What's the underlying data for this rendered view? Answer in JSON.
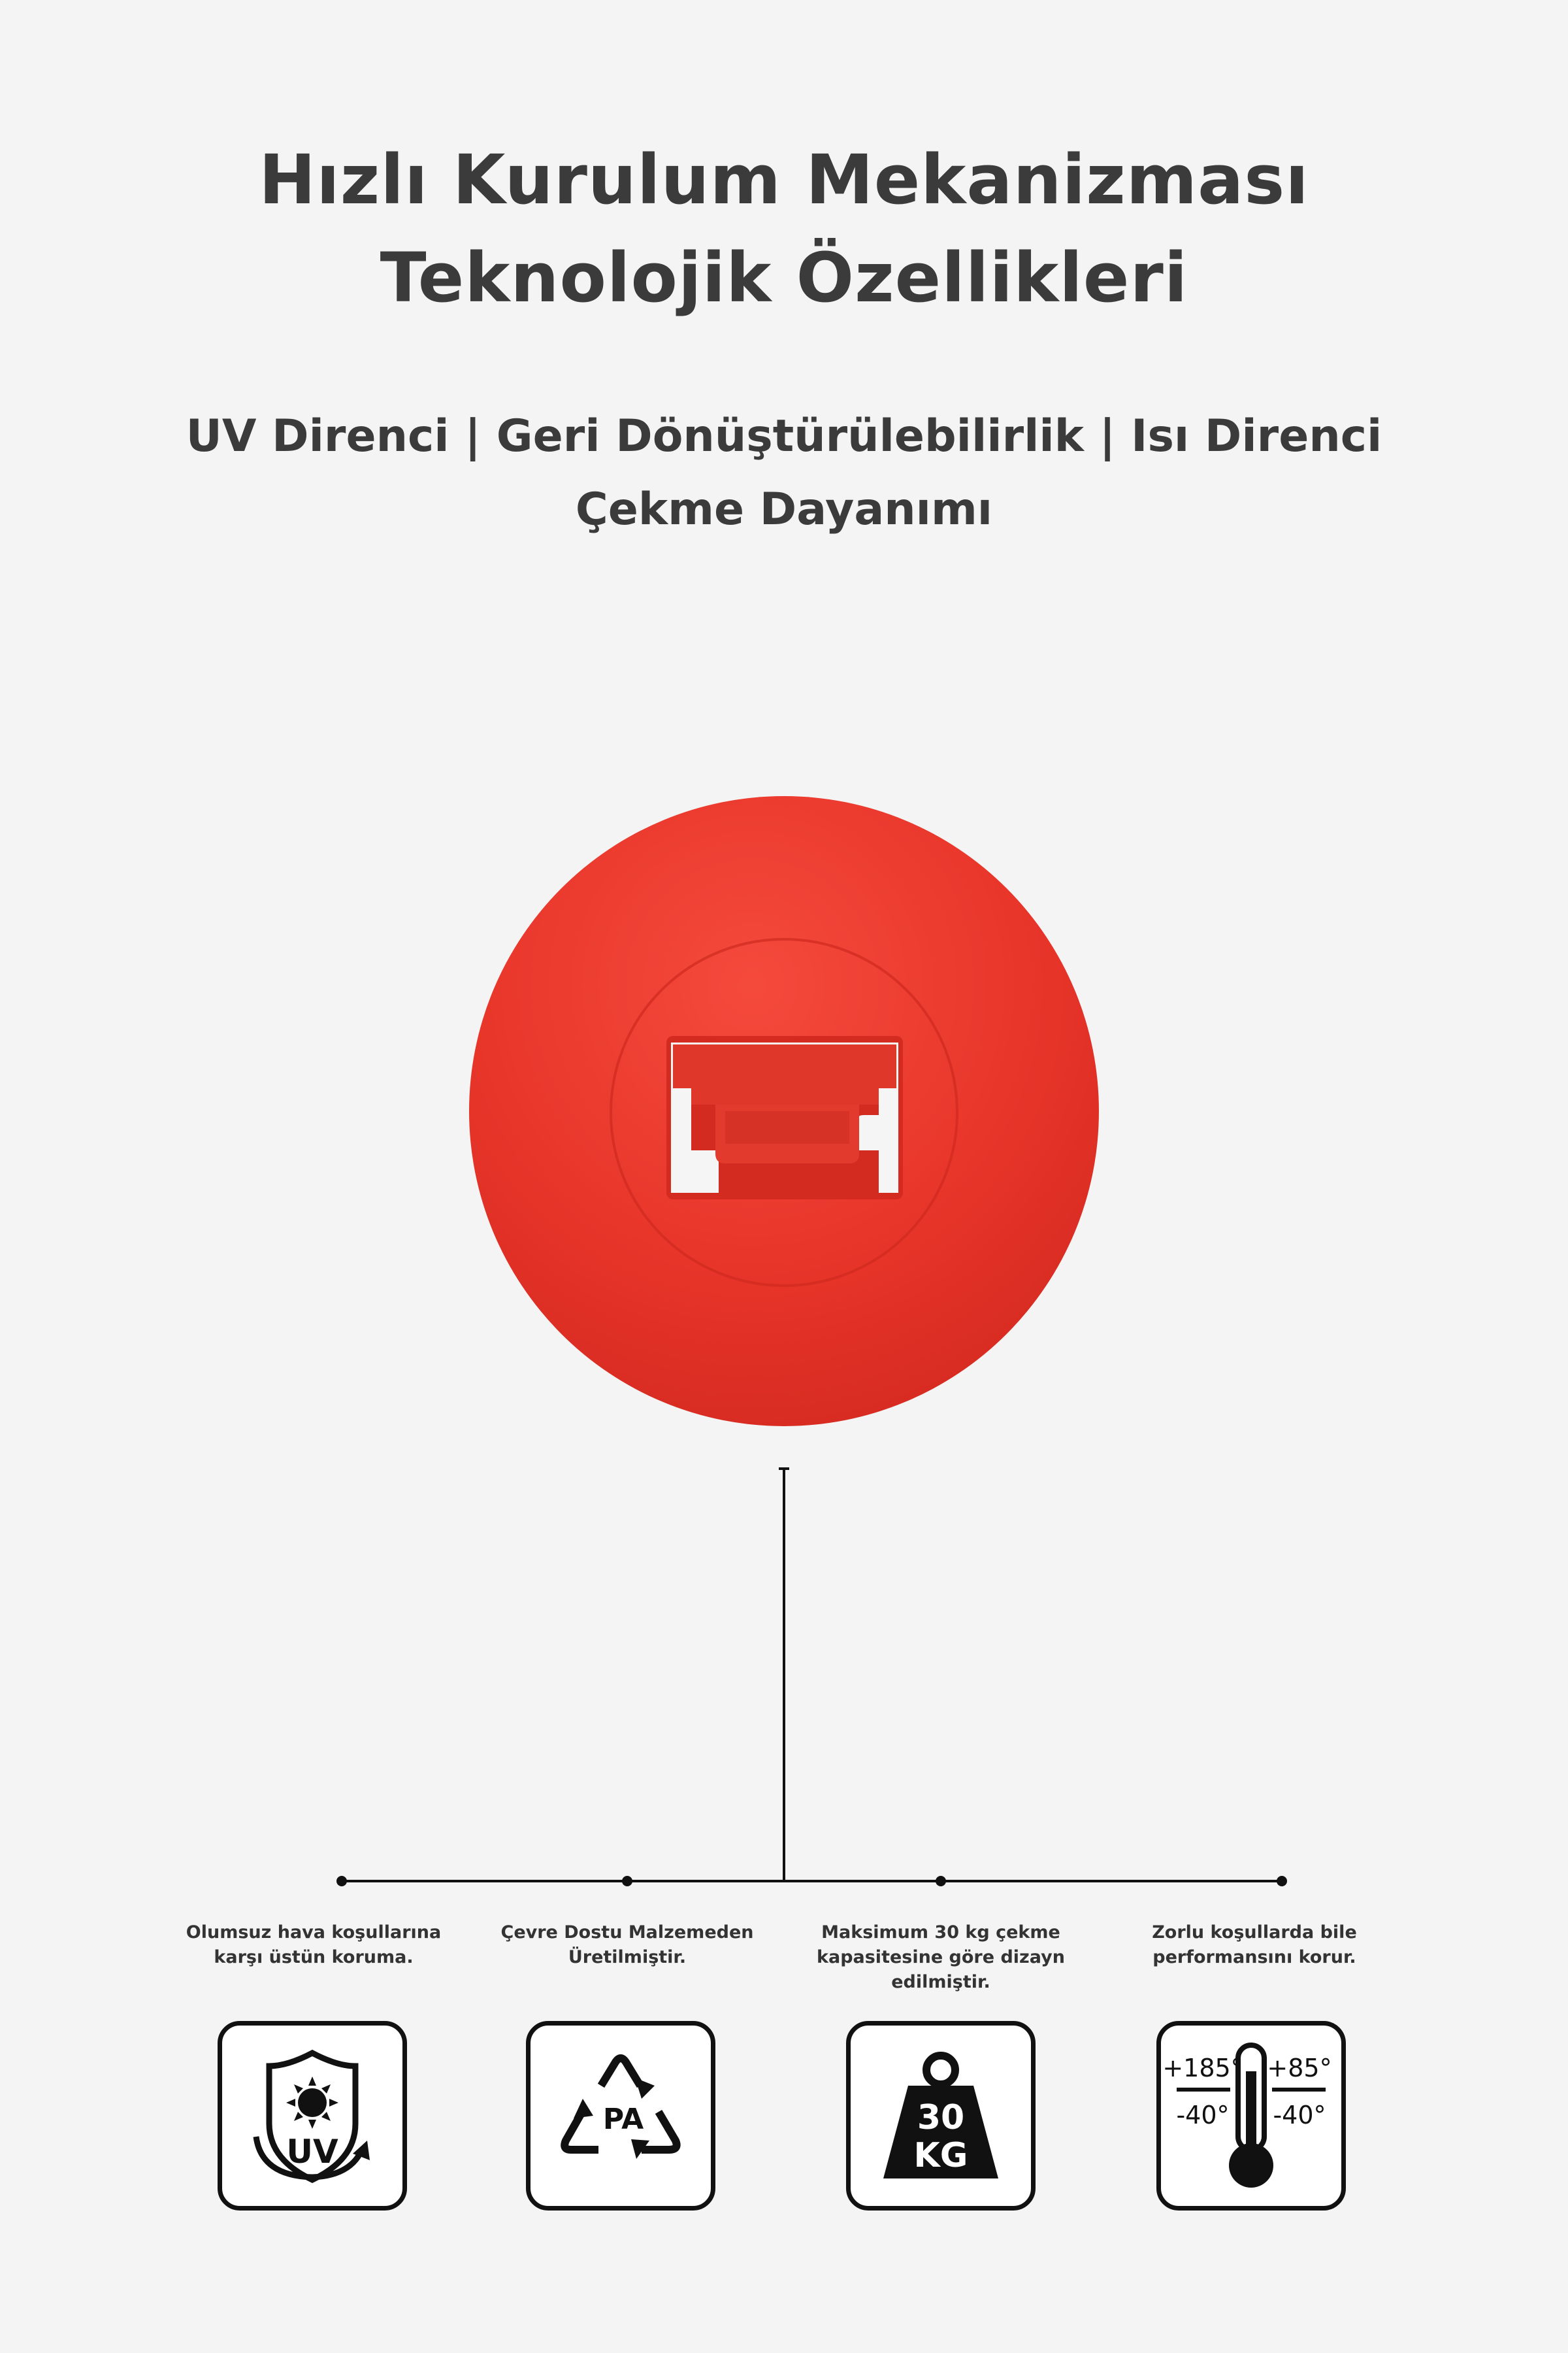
{
  "header": {
    "title_line1": "Hızlı Kurulum Mekanizması",
    "title_line2": "Teknolojik Özellikleri",
    "subtitle_line1": "UV Direnci | Geri Dönüştürülebilirlik | Isı Direnci",
    "subtitle_line2": "Çekme Dayanımı"
  },
  "product": {
    "name": "red-round-clip-mount",
    "color": "#e8352a"
  },
  "features": [
    {
      "caption_line1": "Olumsuz hava koşullarına",
      "caption_line2": "karşı üstün koruma.",
      "caption_line3": "",
      "icon": "uv-shield-icon",
      "icon_text": "UV"
    },
    {
      "caption_line1": "Çevre Dostu Malzemeden",
      "caption_line2": "Üretilmiştir.",
      "caption_line3": "",
      "icon": "recycle-icon",
      "icon_text": "PA"
    },
    {
      "caption_line1": "Maksimum 30 kg çekme",
      "caption_line2": "kapasitesine göre dizayn",
      "caption_line3": "edilmiştir.",
      "icon": "weight-icon",
      "icon_text_line1": "30",
      "icon_text_line2": "KG"
    },
    {
      "caption_line1": "Zorlu koşullarda bile",
      "caption_line2": "performansını korur.",
      "caption_line3": "",
      "icon": "thermometer-icon",
      "temp_high_1": "+185°",
      "temp_high_2": "+85°",
      "temp_low_1": "-40°",
      "temp_low_2": "-40°"
    }
  ]
}
